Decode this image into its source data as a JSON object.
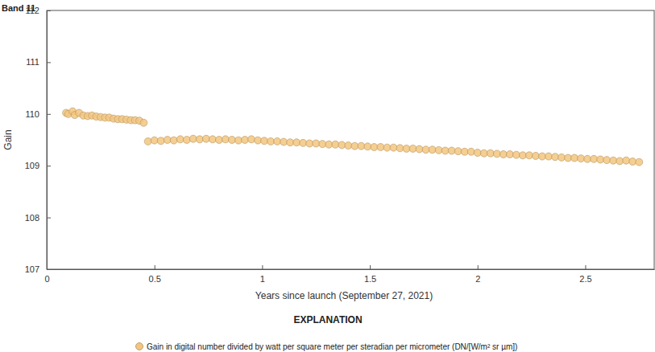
{
  "chart_data": {
    "type": "scatter",
    "title": "Band 11",
    "x_label": "Years since launch (September 27, 2021)",
    "y_label": "Gain",
    "legend_title": "EXPLANATION",
    "legend": "bottom",
    "grid": false,
    "xlim": [
      0,
      2.82
    ],
    "xticks": [
      0,
      0.5,
      1,
      1.5,
      2,
      2.5
    ],
    "ylim": [
      107,
      112
    ],
    "yticks": [
      107,
      108,
      109,
      110,
      111,
      112
    ],
    "x": [
      0.09,
      0.1,
      0.12,
      0.13,
      0.15,
      0.17,
      0.19,
      0.21,
      0.23,
      0.25,
      0.27,
      0.29,
      0.31,
      0.33,
      0.35,
      0.37,
      0.39,
      0.41,
      0.43,
      0.45,
      0.47,
      0.5,
      0.53,
      0.56,
      0.59,
      0.62,
      0.65,
      0.68,
      0.71,
      0.74,
      0.77,
      0.8,
      0.83,
      0.86,
      0.89,
      0.92,
      0.95,
      0.98,
      1.01,
      1.04,
      1.07,
      1.1,
      1.13,
      1.16,
      1.19,
      1.22,
      1.25,
      1.28,
      1.31,
      1.34,
      1.37,
      1.4,
      1.43,
      1.46,
      1.49,
      1.52,
      1.55,
      1.58,
      1.61,
      1.64,
      1.67,
      1.7,
      1.73,
      1.76,
      1.79,
      1.82,
      1.85,
      1.88,
      1.91,
      1.94,
      1.97,
      2.0,
      2.03,
      2.06,
      2.09,
      2.12,
      2.15,
      2.18,
      2.21,
      2.24,
      2.27,
      2.3,
      2.33,
      2.36,
      2.39,
      2.42,
      2.45,
      2.48,
      2.51,
      2.54,
      2.57,
      2.6,
      2.63,
      2.66,
      2.69,
      2.72,
      2.75
    ],
    "series": [
      {
        "name": "Gain in digital number divided by watt per square meter per steradian per micrometer (DN/[W/m² sr µm])",
        "color": "#f3c57f",
        "marker": "circle",
        "values": [
          110.02,
          110.0,
          110.05,
          109.98,
          110.02,
          109.97,
          109.96,
          109.97,
          109.95,
          109.94,
          109.93,
          109.93,
          109.91,
          109.9,
          109.9,
          109.89,
          109.88,
          109.88,
          109.87,
          109.83,
          109.47,
          109.49,
          109.48,
          109.5,
          109.49,
          109.51,
          109.5,
          109.52,
          109.51,
          109.52,
          109.51,
          109.5,
          109.51,
          109.5,
          109.49,
          109.5,
          109.51,
          109.49,
          109.48,
          109.47,
          109.47,
          109.46,
          109.45,
          109.45,
          109.44,
          109.43,
          109.43,
          109.42,
          109.41,
          109.41,
          109.4,
          109.39,
          109.38,
          109.38,
          109.37,
          109.36,
          109.36,
          109.35,
          109.35,
          109.34,
          109.33,
          109.33,
          109.32,
          109.31,
          109.31,
          109.3,
          109.29,
          109.29,
          109.28,
          109.27,
          109.27,
          109.25,
          109.24,
          109.24,
          109.23,
          109.22,
          109.22,
          109.21,
          109.2,
          109.2,
          109.19,
          109.18,
          109.18,
          109.17,
          109.16,
          109.15,
          109.15,
          109.14,
          109.13,
          109.13,
          109.12,
          109.11,
          109.1,
          109.09,
          109.1,
          109.08,
          109.07
        ]
      }
    ]
  }
}
